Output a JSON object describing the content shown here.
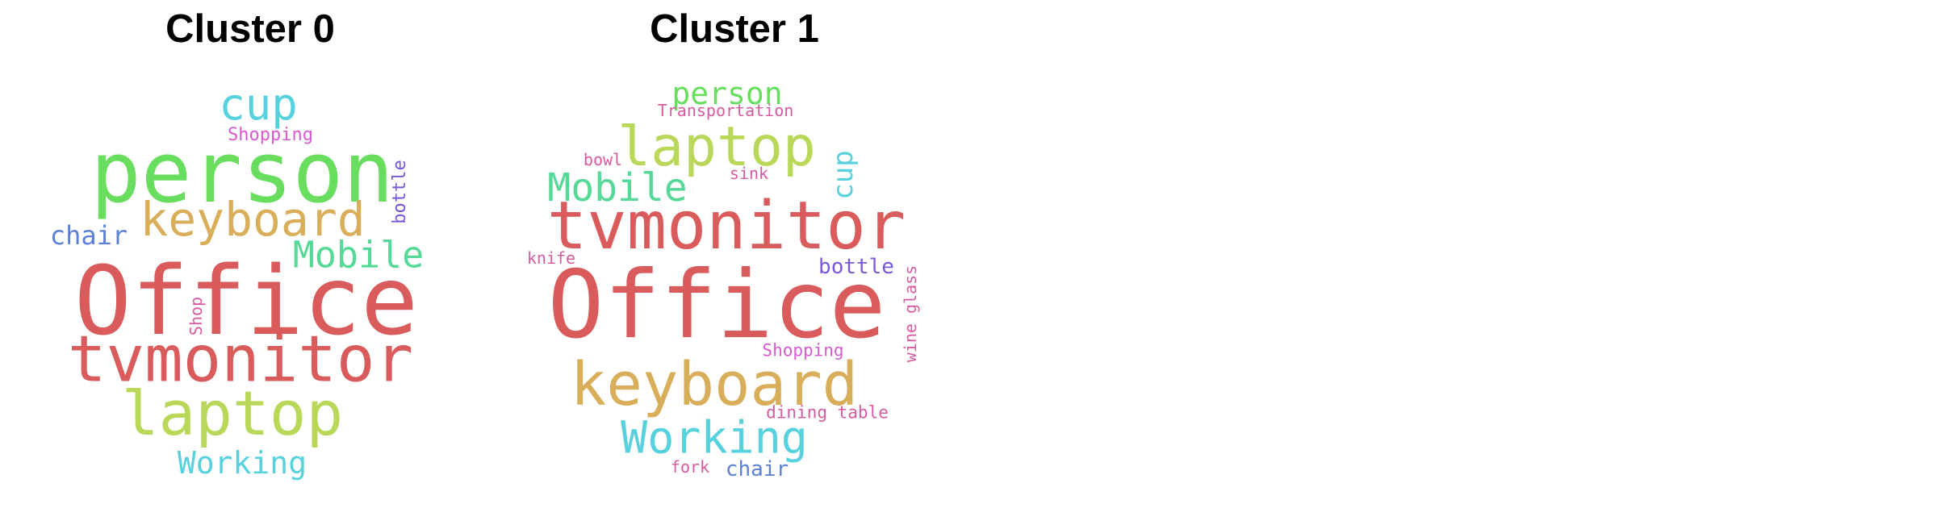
{
  "clusters": [
    {
      "title": "Cluster 0",
      "words": [
        {
          "text": "cup",
          "color": "#56d1dd"
        },
        {
          "text": "Shopping",
          "color": "#d65bd0"
        },
        {
          "text": "person",
          "color": "#68dd5e"
        },
        {
          "text": "bottle",
          "color": "#7a57d8"
        },
        {
          "text": "keyboard",
          "color": "#d9ae5a"
        },
        {
          "text": "chair",
          "color": "#5b80d6"
        },
        {
          "text": "Mobile",
          "color": "#56d896"
        },
        {
          "text": "Office",
          "color": "#d95b5b"
        },
        {
          "text": "Shop",
          "color": "#d65ba0"
        },
        {
          "text": "tvmonitor",
          "color": "#d95b5b"
        },
        {
          "text": "laptop",
          "color": "#b9d85a"
        },
        {
          "text": "Working",
          "color": "#56d1dd"
        }
      ]
    },
    {
      "title": "Cluster 1",
      "words": [
        {
          "text": "person",
          "color": "#68dd5e"
        },
        {
          "text": "Transportation",
          "color": "#d65ba0"
        },
        {
          "text": "laptop",
          "color": "#b9d85a"
        },
        {
          "text": "bowl",
          "color": "#d65ba0"
        },
        {
          "text": "sink",
          "color": "#d65ba0"
        },
        {
          "text": "cup",
          "color": "#56d1dd"
        },
        {
          "text": "Mobile",
          "color": "#56d896"
        },
        {
          "text": "tvmonitor",
          "color": "#d95b5b"
        },
        {
          "text": "knife",
          "color": "#d65ba0"
        },
        {
          "text": "bottle",
          "color": "#7a57d8"
        },
        {
          "text": "Office",
          "color": "#d95b5b"
        },
        {
          "text": "wine glass",
          "color": "#d65ba0"
        },
        {
          "text": "keyboard",
          "color": "#d9ae5a"
        },
        {
          "text": "Shopping",
          "color": "#d65bd0"
        },
        {
          "text": "dining table",
          "color": "#d65ba0"
        },
        {
          "text": "Working",
          "color": "#56d1dd"
        },
        {
          "text": "fork",
          "color": "#d65ba0"
        },
        {
          "text": "chair",
          "color": "#5b80d6"
        }
      ]
    }
  ]
}
